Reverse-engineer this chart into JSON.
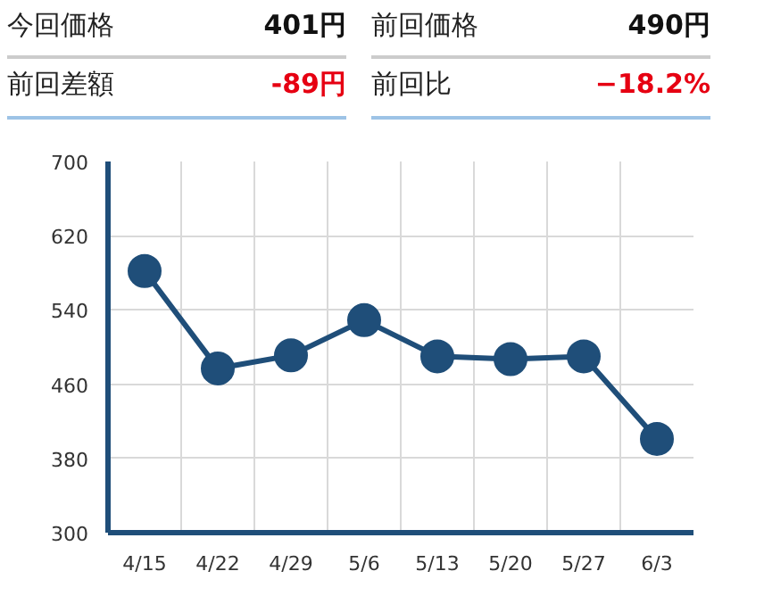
{
  "chart_data": {
    "type": "line",
    "annotations": [
      "今回価格",
      "401円",
      "前回価格",
      "490円",
      "前回差額",
      "-89円",
      "前回比",
      "−18.2%"
    ],
    "categories": [
      "4/15",
      "4/22",
      "4/29",
      "5/6",
      "5/13",
      "5/20",
      "5/27",
      "6/3"
    ],
    "series": [
      {
        "color": "#1f4e79",
        "values": [
          582,
          477,
          491,
          529,
          490,
          487,
          490,
          401
        ]
      }
    ],
    "ylim": [
      300,
      700
    ],
    "yticks": [
      300,
      380,
      460,
      540,
      620,
      700
    ],
    "grid": true,
    "marker": "circle",
    "line_style": "solid"
  }
}
